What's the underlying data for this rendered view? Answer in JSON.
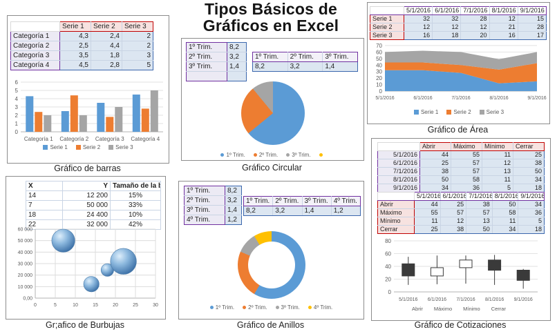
{
  "title": "Tipos Básicos de Gráficos en Excel",
  "captions": {
    "bar": "Gráfico de barras",
    "pie": "Gráfico Circular",
    "area": "Gráfico de Área",
    "bubble": "Gr;afico de Burbujas",
    "donut": "Gráfico de Anillos",
    "stock": "Gráfico de Cotizaciones"
  },
  "colors": {
    "serie1_blue": "#5B9BD5",
    "serie2_orange": "#ED7D31",
    "serie3_gray": "#A5A5A5",
    "serie4_yellow": "#FFC000",
    "candle_down": "#3a3a3a",
    "header_red": "#c00000",
    "label_purple": "#7030a0",
    "data_blue_border": "#3a66ad"
  },
  "tables": {
    "bar": {
      "header": [
        "",
        "Serie 1",
        "Serie 2",
        "Serie 3"
      ],
      "rows": [
        [
          "Categoría 1",
          "4,3",
          "2,4",
          "2"
        ],
        [
          "Categoría 2",
          "2,5",
          "4,4",
          "2"
        ],
        [
          "Categoría 3",
          "3,5",
          "1,8",
          "3"
        ],
        [
          "Categoría 4",
          "4,5",
          "2,8",
          "5"
        ]
      ]
    },
    "pie_v": {
      "rows": [
        [
          "1º Trim.",
          "8,2"
        ],
        [
          "2º Trim.",
          "3,2"
        ],
        [
          "3º Trim.",
          "1,4"
        ],
        [
          "",
          ""
        ]
      ]
    },
    "pie_h": {
      "header": [
        "1º Trim.",
        "2º Trim.",
        "3º Trim."
      ],
      "rows": [
        [
          "8,2",
          "3,2",
          "1,4"
        ]
      ]
    },
    "area": {
      "header": [
        "",
        "5/1/2016",
        "6/1/2016",
        "7/1/2016",
        "8/1/2016",
        "9/1/2016"
      ],
      "rows": [
        [
          "Serie 1",
          "32",
          "32",
          "28",
          "12",
          "15"
        ],
        [
          "Serie 2",
          "12",
          "12",
          "12",
          "21",
          "28"
        ],
        [
          "Serie 3",
          "16",
          "18",
          "20",
          "16",
          "17"
        ]
      ]
    },
    "bubble": {
      "header": [
        "X",
        "Y",
        "Tamaño de la burbuja"
      ],
      "rows": [
        [
          "14",
          "12 200",
          "15%"
        ],
        [
          "7",
          "50 000",
          "33%"
        ],
        [
          "18",
          "24 400",
          "10%"
        ],
        [
          "22",
          "32 000",
          "42%"
        ]
      ]
    },
    "donut_v": {
      "rows": [
        [
          "1º Trim.",
          "8,2"
        ],
        [
          "2º Trim.",
          "3,2"
        ],
        [
          "3º Trim.",
          "1,4"
        ],
        [
          "4º Trim.",
          "1,2"
        ]
      ]
    },
    "donut_h": {
      "header": [
        "1º Trim.",
        "2º Trim.",
        "3º Trim.",
        "4º Trim."
      ],
      "rows": [
        [
          "8,2",
          "3,2",
          "1,4",
          "1,2"
        ]
      ]
    },
    "stock_v": {
      "header": [
        "",
        "Abrir",
        "Máximo",
        "Mínimo",
        "Cerrar"
      ],
      "rows": [
        [
          "5/1/2016",
          "44",
          "55",
          "11",
          "25"
        ],
        [
          "6/1/2016",
          "25",
          "57",
          "12",
          "38"
        ],
        [
          "7/1/2016",
          "38",
          "57",
          "13",
          "50"
        ],
        [
          "8/1/2016",
          "50",
          "58",
          "11",
          "34"
        ],
        [
          "9/1/2016",
          "34",
          "36",
          "5",
          "18"
        ]
      ]
    },
    "stock_h": {
      "header": [
        "",
        "5/1/2016",
        "6/1/2016",
        "7/1/2016",
        "8/1/2016",
        "9/1/2016"
      ],
      "rows": [
        [
          "Abrir",
          "44",
          "25",
          "38",
          "50",
          "34"
        ],
        [
          "Máximo",
          "55",
          "57",
          "57",
          "58",
          "36"
        ],
        [
          "Mínimo",
          "11",
          "12",
          "13",
          "11",
          "5"
        ],
        [
          "Cerrar",
          "25",
          "38",
          "50",
          "34",
          "18"
        ]
      ]
    }
  },
  "chart_data": [
    {
      "type": "bar",
      "title": "Gráfico de barras",
      "categories": [
        "Categoría 1",
        "Categoría 2",
        "Categoría 3",
        "Categoría 4"
      ],
      "series": [
        {
          "name": "Serie 1",
          "color": "#5B9BD5",
          "values": [
            4.3,
            2.5,
            3.5,
            4.5
          ]
        },
        {
          "name": "Serie 2",
          "color": "#ED7D31",
          "values": [
            2.4,
            4.4,
            1.8,
            2.8
          ]
        },
        {
          "name": "Serie 3",
          "color": "#A5A5A5",
          "values": [
            2,
            2,
            3,
            5
          ]
        }
      ],
      "ylim": [
        0,
        6
      ],
      "yticks": [
        0,
        1,
        2,
        3,
        4,
        5,
        6
      ],
      "grid": true,
      "legend_position": "bottom"
    },
    {
      "type": "pie",
      "title": "Gráfico Circular",
      "labels": [
        "1º Trim.",
        "2º Trim.",
        "3º Trim."
      ],
      "values": [
        8.2,
        3.2,
        1.4
      ],
      "colors": [
        "#5B9BD5",
        "#ED7D31",
        "#A5A5A5"
      ],
      "legend_labels": [
        "1º Trim.",
        "2º Trim.",
        "3º Trim.",
        ""
      ],
      "legend_colors": [
        "#5B9BD5",
        "#ED7D31",
        "#A5A5A5",
        "#FFC000"
      ],
      "legend_position": "bottom"
    },
    {
      "type": "area",
      "title": "Gráfico de Área",
      "stacked": true,
      "x": [
        "5/1/2016",
        "6/1/2016",
        "7/1/2016",
        "8/1/2016",
        "9/1/2016"
      ],
      "series": [
        {
          "name": "Serie 1",
          "color": "#5B9BD5",
          "values": [
            32,
            32,
            28,
            12,
            15
          ]
        },
        {
          "name": "Serie 2",
          "color": "#ED7D31",
          "values": [
            12,
            12,
            12,
            21,
            28
          ]
        },
        {
          "name": "Serie 3",
          "color": "#A5A5A5",
          "values": [
            16,
            18,
            20,
            16,
            17
          ]
        }
      ],
      "ylim": [
        0,
        70
      ],
      "yticks": [
        0,
        10,
        20,
        30,
        40,
        50,
        60,
        70
      ],
      "grid": true,
      "legend_position": "bottom"
    },
    {
      "type": "bubble",
      "title": "Gr;afico de Burbujas",
      "points": [
        {
          "x": 14,
          "y": 12200,
          "size_pct": 15
        },
        {
          "x": 7,
          "y": 50000,
          "size_pct": 33
        },
        {
          "x": 18,
          "y": 24400,
          "size_pct": 10
        },
        {
          "x": 22,
          "y": 32000,
          "size_pct": 42
        }
      ],
      "xlim": [
        0,
        30
      ],
      "ylim": [
        0,
        60000
      ],
      "xticks": [
        "0",
        "5",
        "10",
        "15",
        "20",
        "25",
        "30"
      ],
      "yticks": [
        "0,00",
        "10 000",
        "20 000",
        "30 000",
        "40 000",
        "50 000",
        "60 000"
      ],
      "grid": true,
      "bubble_color": "#5B9BD5"
    },
    {
      "type": "donut",
      "title": "Gráfico de Anillos",
      "labels": [
        "1º Trim.",
        "2º Trim.",
        "3º Trim.",
        "4º Trim."
      ],
      "values": [
        8.2,
        3.2,
        1.4,
        1.2
      ],
      "colors": [
        "#5B9BD5",
        "#ED7D31",
        "#A5A5A5",
        "#FFC000"
      ],
      "legend_labels": [
        "1º Trim.",
        "2º Trim.",
        "3º Trim.",
        "4º Trim."
      ],
      "legend_colors": [
        "#5B9BD5",
        "#ED7D31",
        "#A5A5A5",
        "#FFC000"
      ],
      "legend_position": "bottom"
    },
    {
      "type": "stock",
      "title": "Gráfico de Cotizaciones",
      "x": [
        "5/1/2016",
        "6/1/2016",
        "7/1/2016",
        "8/1/2016",
        "9/1/2016"
      ],
      "open": [
        44,
        25,
        38,
        50,
        34
      ],
      "high": [
        55,
        57,
        57,
        58,
        36
      ],
      "low": [
        11,
        12,
        13,
        11,
        5
      ],
      "close": [
        25,
        38,
        50,
        34,
        18
      ],
      "ylim": [
        0,
        80
      ],
      "yticks": [
        0,
        20,
        40,
        60,
        80
      ],
      "series_labels": [
        "Abrir",
        "Máximo",
        "Mínimo",
        "Cerrar"
      ]
    }
  ]
}
